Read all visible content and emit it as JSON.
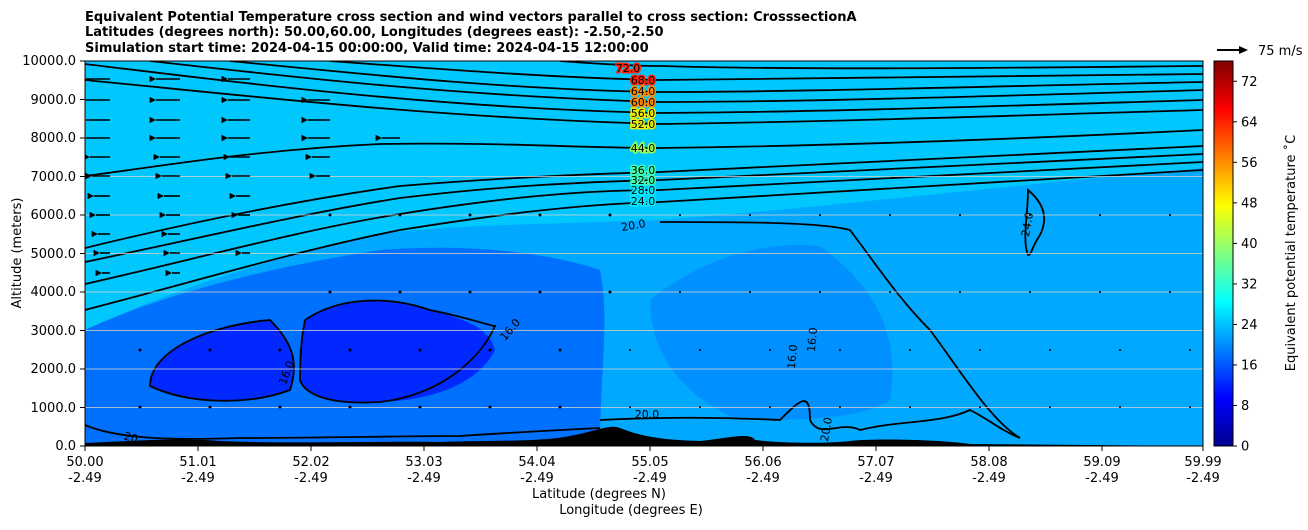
{
  "chart_data": {
    "type": "heatmap",
    "title_lines": [
      "Equivalent Potential Temperature cross section and wind vectors parallel to cross section: CrosssectionA",
      "Latitudes (degrees north): 50.00,60.00, Longitudes (degrees east): -2.50,-2.50",
      "Simulation start time: 2024-04-15 00:00:00, Valid time: 2024-04-15 12:00:00"
    ],
    "xlabel": "Latitude (degrees N)",
    "xlabel2": "Longitude (degrees E)",
    "ylabel": "Altitude (meters)",
    "colorbar_label": "Equivalent potential temperature ˚C",
    "quiver_key": "75 m/s",
    "xlim": [
      50.0,
      59.99
    ],
    "ylim": [
      0,
      10000
    ],
    "x_ticks": [
      {
        "lat": "50.00",
        "lon": "-2.49"
      },
      {
        "lat": "51.01",
        "lon": "-2.49"
      },
      {
        "lat": "52.02",
        "lon": "-2.49"
      },
      {
        "lat": "53.03",
        "lon": "-2.49"
      },
      {
        "lat": "54.04",
        "lon": "-2.49"
      },
      {
        "lat": "55.05",
        "lon": "-2.49"
      },
      {
        "lat": "56.06",
        "lon": "-2.49"
      },
      {
        "lat": "57.07",
        "lon": "-2.49"
      },
      {
        "lat": "58.08",
        "lon": "-2.49"
      },
      {
        "lat": "59.09",
        "lon": "-2.49"
      },
      {
        "lat": "59.99",
        "lon": "-2.49"
      }
    ],
    "y_ticks": [
      "0.0",
      "1000.0",
      "2000.0",
      "3000.0",
      "4000.0",
      "5000.0",
      "6000.0",
      "7000.0",
      "8000.0",
      "9000.0",
      "10000.0"
    ],
    "colorbar_range": [
      0,
      76
    ],
    "colorbar_ticks": [
      "0",
      "8",
      "16",
      "24",
      "32",
      "40",
      "48",
      "56",
      "64",
      "72"
    ],
    "contour_labels": [
      "72.0",
      "68.0",
      "64.0",
      "60.0",
      "56.0",
      "52.0",
      "44.0",
      "36.0",
      "32.0",
      "28.0",
      "24.0",
      "20.0",
      "16.0",
      "16.0",
      "16.0",
      "16.0",
      "20.0",
      "20",
      "24.0",
      "20.0"
    ],
    "colors": {
      "cold": "#00008f",
      "cyan": "#00ffff",
      "yellow": "#ffff00",
      "red": "#800000",
      "terrain": "#000000"
    }
  }
}
